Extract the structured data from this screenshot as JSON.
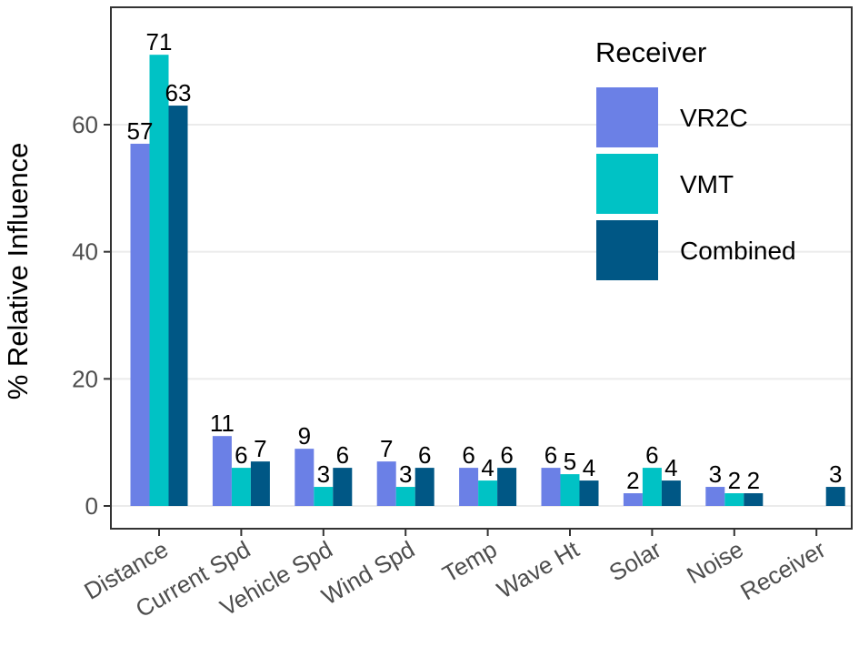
{
  "chart_data": {
    "type": "bar",
    "title": "",
    "xlabel": "",
    "ylabel": "% Relative Influence",
    "ylim": [
      -2.5,
      78
    ],
    "yticks": [
      0,
      20,
      40,
      60
    ],
    "grid": true,
    "legend_position": "top-right",
    "legend_title": "Receiver",
    "categories": [
      "Distance",
      "Current Spd",
      "Vehicle Spd",
      "Wind Spd",
      "Temp",
      "Wave Ht",
      "Solar",
      "Noise",
      "Receiver"
    ],
    "series": [
      {
        "name": "VR2C",
        "color": "#6b80e6",
        "values": [
          57,
          11,
          9,
          7,
          6,
          6,
          2,
          3,
          null
        ]
      },
      {
        "name": "VMT",
        "color": "#00c2c5",
        "values": [
          71,
          6,
          3,
          3,
          4,
          5,
          6,
          2,
          null
        ]
      },
      {
        "name": "Combined",
        "color": "#005785",
        "values": [
          63,
          7,
          6,
          6,
          6,
          4,
          4,
          2,
          3
        ]
      }
    ]
  }
}
